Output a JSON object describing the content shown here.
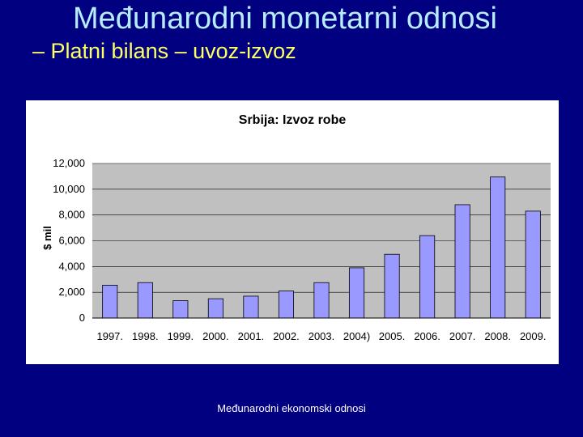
{
  "slide": {
    "title": "Međunarodni monetarni odnosi",
    "subtitle": "– Platni bilans – uvoz-izvoz",
    "footer": "Međunarodni ekonomski odnosi",
    "background_color": "#000080",
    "title_color": "#b7ecff",
    "subtitle_color": "#ffff66"
  },
  "chart_data": {
    "type": "bar",
    "title": "Srbija: Izvoz robe",
    "ylabel": "$ mil",
    "xlabel": "",
    "categories": [
      "1997.",
      "1998.",
      "1999.",
      "2000.",
      "2001.",
      "2002.",
      "2003.",
      "2004)",
      "2005.",
      "2006.",
      "2007.",
      "2008.",
      "2009."
    ],
    "values": [
      2550,
      2750,
      1350,
      1500,
      1700,
      2100,
      2750,
      3900,
      4950,
      6400,
      8800,
      10950,
      8300
    ],
    "ylim": [
      0,
      12000
    ],
    "yticks": [
      0,
      2000,
      4000,
      6000,
      8000,
      10000,
      12000
    ],
    "ytick_labels": [
      "0",
      "2,000",
      "4,000",
      "6,000",
      "8,000",
      "10,000",
      "12,000"
    ],
    "grid": true,
    "bar_color": "#9999ff",
    "plot_background": "#c0c0c0",
    "legend": "none"
  }
}
